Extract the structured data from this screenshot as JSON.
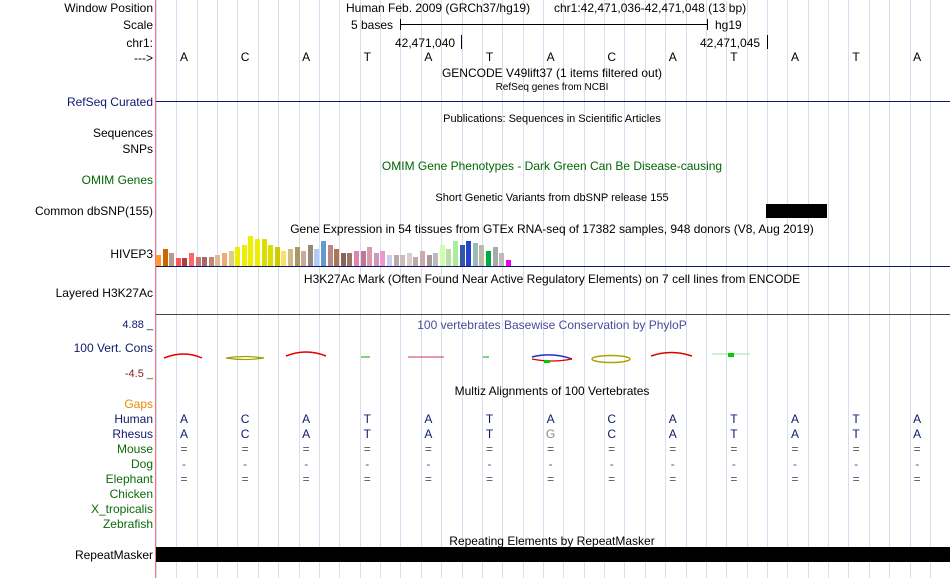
{
  "header": {
    "window_position_label": "Window Position",
    "scale_label": "Scale",
    "chrom_label": "chr1:",
    "strand_label": "--->",
    "assembly": "Human Feb. 2009 (GRCh37/hg19)",
    "coords": "chr1:42,471,036-42,471,048 (13 bp)",
    "scale_text": "5 bases",
    "scale_db": "hg19",
    "tick1": "42,471,040",
    "tick2": "42,471,045"
  },
  "bases": [
    "A",
    "C",
    "A",
    "T",
    "A",
    "T",
    "A",
    "C",
    "A",
    "T",
    "A",
    "T",
    "A"
  ],
  "tracks": {
    "gencode_title": "GENCODE V49lift37 (1 items filtered out)",
    "refseq_title": "RefSeq genes from NCBI",
    "refseq_label": "RefSeq Curated",
    "publications_title": "Publications: Sequences in Scientific Articles",
    "sequences_label": "Sequences",
    "snps_label": "SNPs",
    "omim_title": "OMIM Gene Phenotypes - Dark Green Can Be Disease-causing",
    "omim_label": "OMIM Genes",
    "dbsnp_title": "Short Genetic Variants from dbSNP release 155",
    "dbsnp_label": "Common dbSNP(155)",
    "gtex_title": "Gene Expression in 54 tissues from GTEx RNA-seq of 17382 samples, 948 donors (V8, Aug 2019)",
    "gtex_label": "HIVEP3",
    "h3k27_title": "H3K27Ac Mark (Often Found Near Active Regulatory Elements) on 7 cell lines from ENCODE",
    "h3k27_label": "Layered H3K27Ac",
    "cons_max": "4.88 _",
    "cons_label": "100 Vert. Cons",
    "cons_min": "-4.5 _",
    "cons_title": "100 vertebrates Basewise Conservation by PhyloP",
    "multiz_title": "Multiz Alignments of 100 Vertebrates",
    "repeat_title": "Repeating Elements by RepeatMasker",
    "repeat_label": "RepeatMasker"
  },
  "gtex_values": [
    6,
    9,
    7,
    4,
    4,
    7,
    5,
    5,
    5,
    6,
    7,
    8,
    10,
    11,
    16,
    14,
    14,
    11,
    10,
    8,
    9,
    10,
    8,
    11,
    9,
    13,
    11,
    9,
    7,
    7,
    8,
    8,
    10,
    7,
    8,
    6,
    6,
    6,
    7,
    5,
    8,
    6,
    7,
    11,
    9,
    13,
    11,
    13,
    12,
    11,
    8,
    10,
    7,
    3
  ],
  "gtex_colors": [
    "#ff9933",
    "#cc6600",
    "#bb9988",
    "#ff5555",
    "#aa4444",
    "#ff6666",
    "#cc7777",
    "#aa6666",
    "#bb8877",
    "#ddbb99",
    "#eeaa77",
    "#ddcc88",
    "#eeee00",
    "#eeee00",
    "#eeee00",
    "#eeee00",
    "#dddd00",
    "#dddd00",
    "#cccc00",
    "#ffdd66",
    "#ccbb88",
    "#aa9966",
    "#ccaa99",
    "#998877",
    "#aaccff",
    "#6699cc",
    "#bb8888",
    "#aa7755",
    "#886655",
    "#997766",
    "#dd88aa",
    "#bb7799",
    "#dd99aa",
    "#cc99bb",
    "#ee99cc",
    "#ccccee",
    "#bbaaaa",
    "#ccbbbb",
    "#ddcccc",
    "#bbaaaa",
    "#ccaaaa",
    "#aa9999",
    "#bbbbbb",
    "#ccffaa",
    "#bbddaa",
    "#aaee99",
    "#3355aa",
    "#2244cc",
    "#99bbbb",
    "#bbbbaa",
    "#00aa44",
    "#aaaaaa",
    "#bbbbbb",
    "#ee00ee"
  ],
  "species": [
    {
      "name": "Gaps",
      "color": "#e68a00",
      "seq": null
    },
    {
      "name": "Human",
      "color": "#0d1a6b",
      "seq": [
        "A",
        "C",
        "A",
        "T",
        "A",
        "T",
        "A",
        "C",
        "A",
        "T",
        "A",
        "T",
        "A"
      ]
    },
    {
      "name": "Rhesus",
      "color": "#0d1a6b",
      "seq": [
        "A",
        "C",
        "A",
        "T",
        "A",
        "T",
        "G",
        "C",
        "A",
        "T",
        "A",
        "T",
        "A"
      ]
    },
    {
      "name": "Mouse",
      "color": "#0b6b0b",
      "seq": [
        "=",
        "=",
        "=",
        "=",
        "=",
        "=",
        "=",
        "=",
        "=",
        "=",
        "=",
        "=",
        "="
      ]
    },
    {
      "name": "Dog",
      "color": "#0b6b0b",
      "seq": [
        "-",
        "-",
        "-",
        "-",
        "-",
        "-",
        "-",
        "-",
        "-",
        "-",
        "-",
        "-",
        "-"
      ]
    },
    {
      "name": "Elephant",
      "color": "#0b6b0b",
      "seq": [
        "=",
        "=",
        "=",
        "=",
        "=",
        "=",
        "=",
        "=",
        "=",
        "=",
        "=",
        "=",
        "="
      ]
    },
    {
      "name": "Chicken",
      "color": "#0b6b0b",
      "seq": null
    },
    {
      "name": "X_tropicalis",
      "color": "#0b6b0b",
      "seq": null
    },
    {
      "name": "Zebrafish",
      "color": "#0b6b0b",
      "seq": null
    }
  ],
  "colors": {
    "nav_blue": "#0d1a6b",
    "cons_title": "#4a4a9a",
    "omim_green": "#006600",
    "cons_min_red": "#8b1a1a",
    "separator": "#ff7777"
  }
}
